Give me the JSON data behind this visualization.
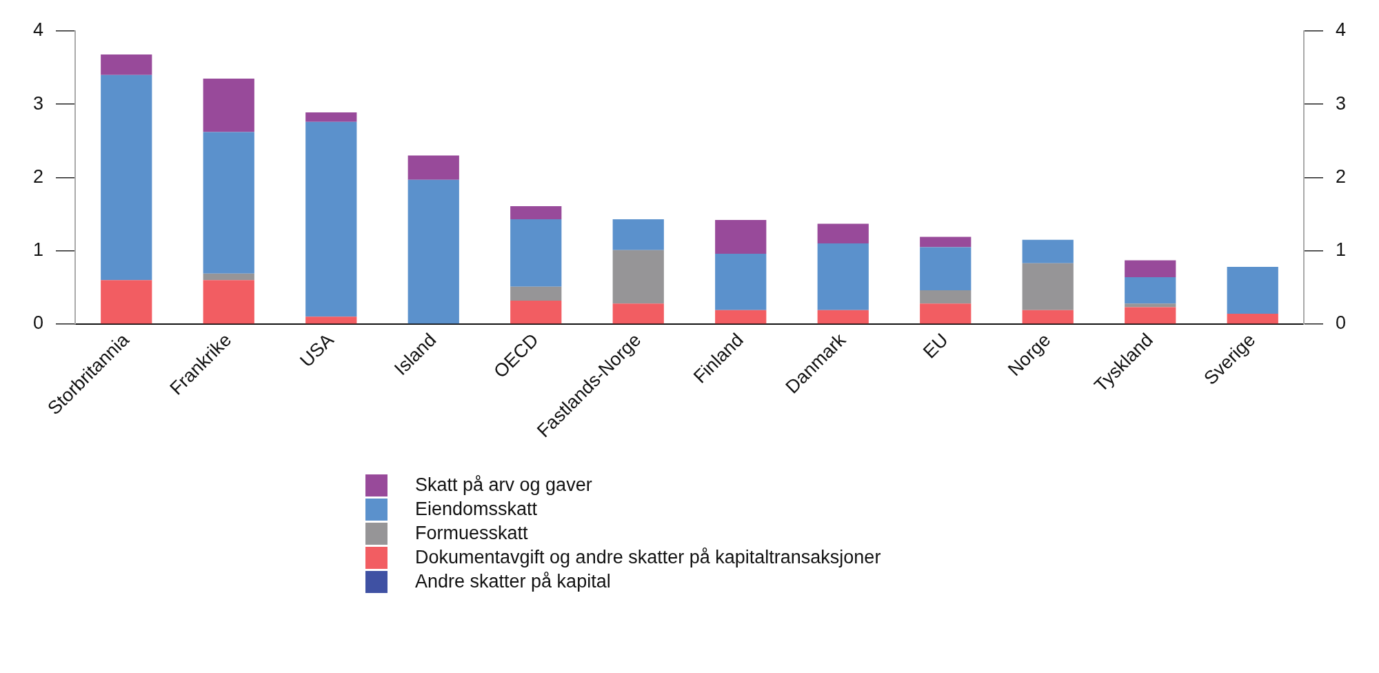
{
  "chart_data": {
    "type": "bar",
    "stacked": true,
    "categories": [
      "Storbritannia",
      "Frankrike",
      "USA",
      "Island",
      "OECD",
      "Fastlands-Norge",
      "Finland",
      "Danmark",
      "EU",
      "Norge",
      "Tyskland",
      "Sverige"
    ],
    "series": [
      {
        "name": "Andre skatter på kapital",
        "color": "#3f51a3",
        "values": [
          0,
          0,
          0,
          0,
          0,
          0,
          0,
          0,
          0,
          0,
          0,
          0
        ]
      },
      {
        "name": "Dokumentavgift og andre skatter på kapitaltransaksjoner",
        "color": "#f25d62",
        "values": [
          0.6,
          0.6,
          0.1,
          0,
          0.32,
          0.28,
          0.19,
          0.19,
          0.28,
          0.19,
          0.23,
          0.14
        ]
      },
      {
        "name": "Formuesskatt",
        "color": "#969597",
        "values": [
          0,
          0.09,
          0,
          0,
          0.19,
          0.73,
          0,
          0,
          0.18,
          0.64,
          0.05,
          0
        ]
      },
      {
        "name": "Eiendomsskatt",
        "color": "#5b91cc",
        "values": [
          2.8,
          1.93,
          2.66,
          1.97,
          0.92,
          0.42,
          0.77,
          0.91,
          0.59,
          0.32,
          0.36,
          0.64
        ]
      },
      {
        "name": "Skatt på arv og gaver",
        "color": "#984a9a",
        "values": [
          0.28,
          0.73,
          0.13,
          0.33,
          0.18,
          0,
          0.46,
          0.27,
          0.14,
          0,
          0.23,
          0
        ]
      }
    ],
    "ylim": [
      0,
      4
    ],
    "yticks": [
      0,
      1,
      2,
      3,
      4
    ],
    "y2lim": [
      0,
      4
    ],
    "y2ticks": [
      0,
      1,
      2,
      3,
      4
    ],
    "grid": false,
    "legend": "bottom"
  }
}
